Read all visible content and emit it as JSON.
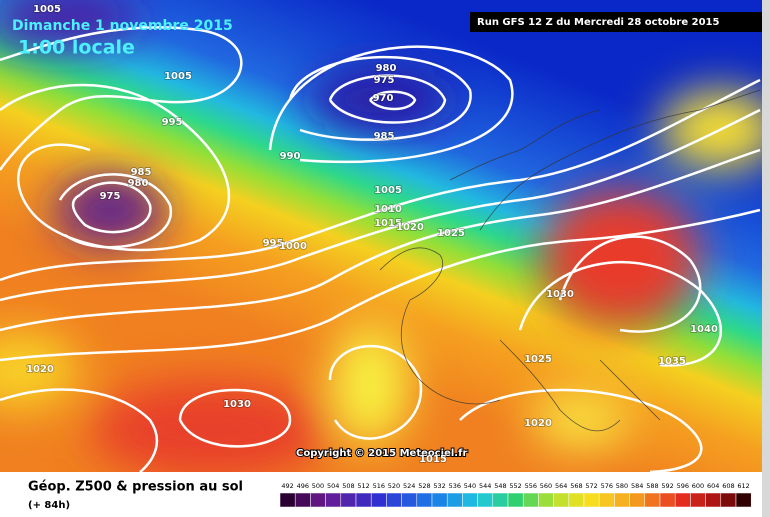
{
  "header": {
    "date": "Dimanche 1 novembre 2015",
    "time": "1:00 locale",
    "run": "Run GFS 12 Z du Mercredi 28 octobre 2015"
  },
  "copyright": "Copyright © 2015 Meteociel.fr",
  "footer": {
    "title": "Géop. Z500 & pression au sol",
    "lead": "(+ 84h)"
  },
  "isobar_labels": [
    1005,
    1005,
    995,
    985,
    980,
    975,
    980,
    975,
    970,
    985,
    990,
    1005,
    1010,
    1015,
    1020,
    1025,
    995,
    1000,
    1030,
    1025,
    1035,
    1040,
    1020,
    1030,
    1020,
    1015
  ],
  "scale": [
    492,
    496,
    500,
    504,
    508,
    512,
    516,
    520,
    524,
    528,
    532,
    536,
    540,
    544,
    548,
    552,
    556,
    560,
    564,
    568,
    572,
    576,
    580,
    584,
    588,
    592,
    596,
    600,
    604,
    608,
    612
  ]
}
